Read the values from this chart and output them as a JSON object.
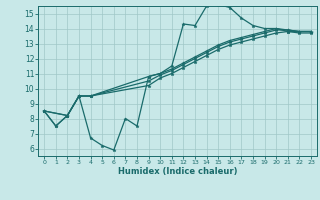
{
  "xlabel": "Humidex (Indice chaleur)",
  "xlim": [
    -0.5,
    23.5
  ],
  "ylim": [
    5.5,
    15.5
  ],
  "xticks": [
    0,
    1,
    2,
    3,
    4,
    5,
    6,
    7,
    8,
    9,
    10,
    11,
    12,
    13,
    14,
    15,
    16,
    17,
    18,
    19,
    20,
    21,
    22,
    23
  ],
  "yticks": [
    6,
    7,
    8,
    9,
    10,
    11,
    12,
    13,
    14,
    15
  ],
  "background_color": "#c8e8e8",
  "grid_color": "#a0c8c8",
  "line_color": "#1a6b6b",
  "line1_x": [
    0,
    1,
    2,
    3,
    4,
    5,
    6,
    7,
    8,
    9,
    10,
    11,
    12,
    13,
    14,
    15,
    16,
    17,
    18,
    19,
    20,
    21,
    22,
    23
  ],
  "line1_y": [
    8.5,
    7.5,
    8.2,
    9.5,
    6.7,
    6.2,
    5.9,
    8.0,
    7.5,
    10.8,
    11.0,
    11.5,
    14.3,
    14.2,
    15.5,
    15.6,
    15.4,
    14.7,
    14.2,
    14.0,
    14.0,
    13.8,
    13.8,
    13.8
  ],
  "line2_x": [
    0,
    1,
    2,
    3,
    4,
    9,
    10,
    11,
    12,
    13,
    14,
    15,
    16,
    17,
    18,
    19,
    20,
    21,
    22,
    23
  ],
  "line2_y": [
    8.5,
    7.5,
    8.2,
    9.5,
    9.5,
    10.8,
    11.0,
    11.3,
    11.7,
    12.1,
    12.5,
    12.9,
    13.2,
    13.4,
    13.6,
    13.8,
    14.0,
    13.9,
    13.8,
    13.8
  ],
  "line3_x": [
    0,
    2,
    3,
    4,
    9,
    10,
    11,
    12,
    13,
    14,
    15,
    16,
    17,
    18,
    19,
    20,
    21,
    22,
    23
  ],
  "line3_y": [
    8.5,
    8.2,
    9.5,
    9.5,
    10.5,
    10.9,
    11.2,
    11.6,
    12.0,
    12.4,
    12.8,
    13.1,
    13.3,
    13.5,
    13.7,
    13.9,
    13.9,
    13.8,
    13.8
  ],
  "line4_x": [
    0,
    2,
    3,
    4,
    9,
    10,
    11,
    12,
    13,
    14,
    15,
    16,
    17,
    18,
    19,
    20,
    21,
    22,
    23
  ],
  "line4_y": [
    8.5,
    8.2,
    9.5,
    9.5,
    10.2,
    10.7,
    11.0,
    11.4,
    11.8,
    12.2,
    12.6,
    12.9,
    13.1,
    13.3,
    13.5,
    13.7,
    13.8,
    13.7,
    13.7
  ]
}
